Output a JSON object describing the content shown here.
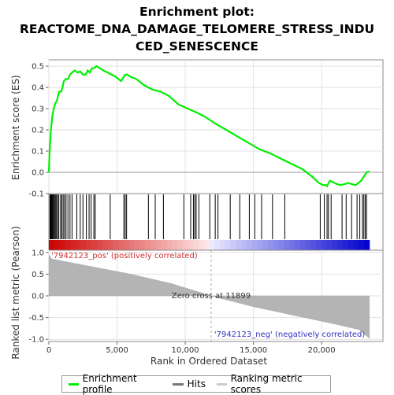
{
  "title_lines": [
    "Enrichment plot:",
    "REACTOME_DNA_DAMAGE_TELOMERE_STRESS_INDU",
    "CED_SENESCENCE"
  ],
  "chart_data": {
    "type": "line",
    "top_panel": {
      "ylabel": "Enrichment score (ES)",
      "ylim": [
        -0.1,
        0.53
      ],
      "yticks": [
        "-0.1",
        "0.0",
        "0.1",
        "0.2",
        "0.3",
        "0.4",
        "0.5"
      ],
      "ytick_values": [
        -0.1,
        0.0,
        0.1,
        0.2,
        0.3,
        0.4,
        0.5
      ],
      "series_name": "Enrichment profile",
      "color": "#00ee00",
      "x": [
        0,
        60,
        150,
        250,
        350,
        450,
        600,
        750,
        900,
        1000,
        1100,
        1250,
        1400,
        1550,
        1700,
        1900,
        2100,
        2300,
        2500,
        2700,
        2850,
        3000,
        3150,
        3300,
        3500,
        3750,
        4000,
        4300,
        4600,
        4900,
        5300,
        5600,
        5750,
        6000,
        6400,
        7000,
        7600,
        8200,
        8800,
        9500,
        10200,
        10900,
        11500,
        12200,
        13000,
        13800,
        14600,
        15400,
        16200,
        17000,
        17800,
        18600,
        19300,
        19800,
        20100,
        20300,
        20400,
        20600,
        20800,
        21100,
        21400,
        21700,
        22000,
        22200,
        22500,
        22700,
        22900,
        23100,
        23300,
        23500
      ],
      "y": [
        0.0,
        0.1,
        0.2,
        0.26,
        0.3,
        0.32,
        0.34,
        0.38,
        0.38,
        0.4,
        0.43,
        0.44,
        0.44,
        0.46,
        0.47,
        0.48,
        0.47,
        0.475,
        0.46,
        0.46,
        0.48,
        0.47,
        0.49,
        0.49,
        0.5,
        0.49,
        0.48,
        0.47,
        0.46,
        0.45,
        0.43,
        0.46,
        0.46,
        0.45,
        0.44,
        0.41,
        0.39,
        0.38,
        0.36,
        0.32,
        0.3,
        0.28,
        0.26,
        0.23,
        0.2,
        0.17,
        0.14,
        0.11,
        0.09,
        0.065,
        0.04,
        0.015,
        -0.02,
        -0.05,
        -0.06,
        -0.06,
        -0.065,
        -0.04,
        -0.045,
        -0.055,
        -0.06,
        -0.055,
        -0.05,
        -0.055,
        -0.06,
        -0.05,
        -0.04,
        -0.02,
        0.0,
        0.005
      ]
    },
    "hits_panel": {
      "hits": [
        80,
        120,
        160,
        200,
        250,
        300,
        350,
        420,
        480,
        560,
        640,
        730,
        860,
        950,
        1050,
        1150,
        1260,
        1400,
        1550,
        1700,
        2050,
        2300,
        2500,
        2750,
        2950,
        3100,
        3300,
        3400,
        4500,
        5500,
        5600,
        5700,
        7300,
        7800,
        8400,
        9900,
        10400,
        10600,
        10700,
        10800,
        11000,
        11800,
        12200,
        12400,
        13300,
        14000,
        14700,
        15100,
        15600,
        16400,
        17300,
        19900,
        20200,
        20400,
        20500,
        20700,
        21500,
        21800,
        22200,
        22600,
        22800,
        23000,
        23100,
        23200,
        23300
      ]
    },
    "metric_panel": {
      "ylabel": "Ranked list metric (Pearson)",
      "ylim": [
        -1.05,
        1.05
      ],
      "yticks": [
        "-1.0",
        "-0.5",
        "0.0",
        "0.5",
        "1.0"
      ],
      "ytick_values": [
        -1.0,
        -0.5,
        0.0,
        0.5,
        1.0
      ],
      "x": [
        0,
        200,
        1000,
        3000,
        6000,
        9000,
        11899,
        15000,
        18000,
        21000,
        22800,
        23500
      ],
      "y": [
        0.95,
        0.85,
        0.8,
        0.68,
        0.5,
        0.28,
        0.0,
        -0.25,
        -0.45,
        -0.65,
        -0.78,
        -0.98
      ],
      "zero_cross_label": "Zero cross at 11899",
      "zero_cross_x": 11899,
      "pos_label": "'7942123_pos' (positively correlated)",
      "neg_label": "'7942123_neg' (negatively correlated)"
    },
    "xlabel": "Rank in Ordered Dataset",
    "xlim": [
      0,
      24500
    ],
    "xticks": [
      "0",
      "5,000",
      "10,000",
      "15,000",
      "20,000"
    ],
    "xtick_values": [
      0,
      5000,
      10000,
      15000,
      20000
    ]
  },
  "legend": {
    "items": [
      {
        "label": "Enrichment profile",
        "color": "#00ee00"
      },
      {
        "label": "Hits",
        "color": "#777777"
      },
      {
        "label": "Ranking metric scores",
        "color": "#cccccc"
      }
    ]
  }
}
